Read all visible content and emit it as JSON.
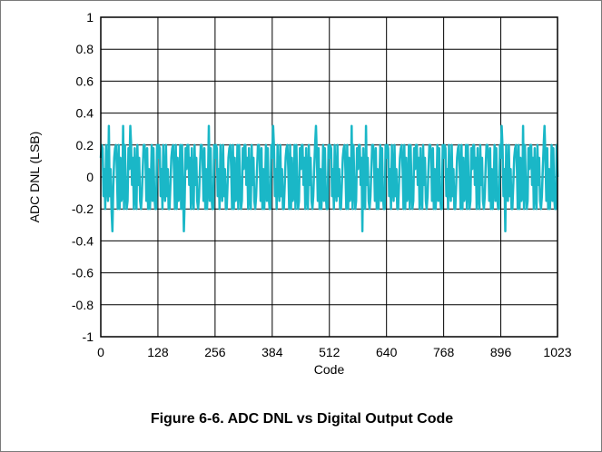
{
  "caption": "Figure 6-6. ADC DNL vs Digital Output Code",
  "colors": {
    "series": "#1ab7c7",
    "grid": "#000000",
    "frame": "#7a7a7a"
  },
  "chart_data": {
    "type": "line",
    "title": "",
    "xlabel": "Code",
    "ylabel": "ADC DNL (LSB)",
    "xlim": [
      0,
      1023
    ],
    "ylim": [
      -1,
      1
    ],
    "grid": true,
    "legend": "none",
    "x_ticks": [
      0,
      128,
      256,
      384,
      512,
      640,
      768,
      896,
      1023
    ],
    "x_tick_labels": [
      "0",
      "128",
      "256",
      "384",
      "512",
      "640",
      "768",
      "896",
      "1023"
    ],
    "y_ticks": [
      1,
      0.8,
      0.6,
      0.4,
      0.2,
      0,
      -0.2,
      -0.4,
      -0.6,
      -0.8,
      -1
    ],
    "y_tick_labels": [
      "1",
      "0.8",
      "0.6",
      "0.4",
      "0.2",
      "0",
      "-0.2",
      "-0.4",
      "-0.6",
      "-0.8",
      "-1"
    ],
    "series": [
      {
        "name": "",
        "x": [
          0,
          16,
          32,
          48,
          64,
          80,
          96,
          112,
          128,
          144,
          160,
          176,
          192,
          208,
          224,
          240,
          256,
          272,
          288,
          304,
          320,
          336,
          352,
          368,
          384,
          400,
          416,
          432,
          448,
          464,
          480,
          496,
          512,
          528,
          544,
          560,
          576,
          592,
          608,
          624,
          640,
          656,
          672,
          688,
          704,
          720,
          736,
          752,
          768,
          784,
          800,
          816,
          832,
          848,
          864,
          880,
          896,
          912,
          928,
          944,
          960,
          976,
          992,
          1008,
          1023
        ],
        "y_max": [
          0.2,
          0.32,
          0.2,
          0.32,
          0.32,
          0.2,
          0.2,
          0.2,
          0.2,
          0.2,
          0.2,
          0.2,
          0.2,
          0.2,
          0.2,
          0.32,
          0.2,
          0.2,
          0.2,
          0.2,
          0.2,
          0.2,
          0.2,
          0.2,
          0.32,
          0.2,
          0.2,
          0.2,
          0.2,
          0.2,
          0.32,
          0.2,
          0.2,
          0.2,
          0.2,
          0.32,
          0.2,
          0.32,
          0.2,
          0.2,
          0.2,
          0.2,
          0.2,
          0.2,
          0.2,
          0.2,
          0.2,
          0.2,
          0.2,
          0.2,
          0.2,
          0.2,
          0.2,
          0.2,
          0.2,
          0.2,
          0.32,
          0.2,
          0.2,
          0.32,
          0.2,
          0.2,
          0.32,
          0.2,
          0.2
        ],
        "y_min": [
          -0.2,
          -0.34,
          -0.2,
          -0.2,
          -0.2,
          -0.2,
          -0.2,
          -0.2,
          -0.2,
          -0.2,
          -0.2,
          -0.34,
          -0.2,
          -0.2,
          -0.2,
          -0.2,
          -0.2,
          -0.2,
          -0.2,
          -0.2,
          -0.2,
          -0.2,
          -0.2,
          -0.2,
          -0.2,
          -0.2,
          -0.2,
          -0.2,
          -0.2,
          -0.2,
          -0.2,
          -0.2,
          -0.2,
          -0.2,
          -0.2,
          -0.2,
          -0.34,
          -0.2,
          -0.2,
          -0.2,
          -0.2,
          -0.2,
          -0.2,
          -0.2,
          -0.2,
          -0.2,
          -0.2,
          -0.2,
          -0.2,
          -0.2,
          -0.2,
          -0.2,
          -0.2,
          -0.2,
          -0.2,
          -0.2,
          -0.34,
          -0.2,
          -0.2,
          -0.2,
          -0.2,
          -0.2,
          -0.2,
          -0.2,
          -0.2
        ]
      }
    ]
  }
}
